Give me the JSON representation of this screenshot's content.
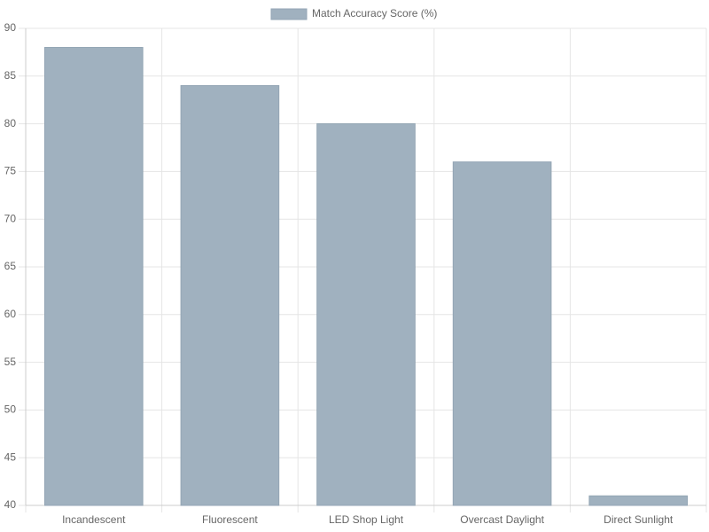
{
  "chart_data": {
    "type": "bar",
    "categories": [
      "Incandescent",
      "Fluorescent",
      "LED Shop Light",
      "Overcast Daylight",
      "Direct Sunlight"
    ],
    "series": [
      {
        "name": "Match Accuracy Score (%)",
        "color": "#a0b1bf",
        "values": [
          88,
          84,
          80,
          76,
          41
        ]
      }
    ],
    "ylim": [
      40,
      90
    ],
    "yticks": [
      40,
      45,
      50,
      55,
      60,
      65,
      70,
      75,
      80,
      85,
      90
    ],
    "grid": true,
    "legend": "top"
  }
}
